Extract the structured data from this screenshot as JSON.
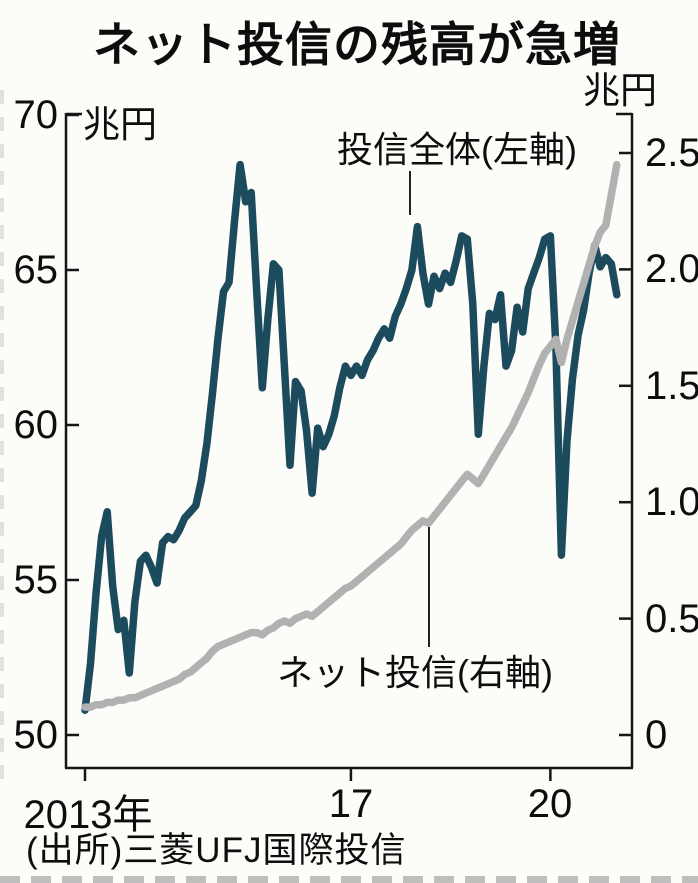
{
  "title": "ネット投信の残高が急増",
  "source": "(出所)三菱UFJ国際投信",
  "chart_data": {
    "type": "line",
    "title": "ネット投信の残高が急増",
    "x_start": "2013-01",
    "x_end": "2021-01",
    "x_frequency": "monthly",
    "grid": false,
    "left_axis": {
      "unit": "兆円",
      "min": 50,
      "max": 70,
      "ticks": {
        "t0": "70",
        "t1": "65",
        "t2": "60",
        "t3": "55",
        "t4": "50"
      },
      "tick_values": [
        70,
        65,
        60,
        55,
        50
      ]
    },
    "right_axis": {
      "unit": "兆円",
      "min": 0,
      "max": 2.5,
      "ticks": {
        "t0": "2.5",
        "t1": "2.0",
        "t2": "1.5",
        "t3": "1.0",
        "t4": "0.5",
        "t5": "0"
      },
      "tick_values": [
        2.5,
        2.0,
        1.5,
        1.0,
        0.5,
        0
      ]
    },
    "x_axis": {
      "ticks": {
        "t0": "2013年",
        "t1": "17",
        "t2": "20"
      },
      "tick_month_index": [
        0,
        48,
        84
      ]
    },
    "series": [
      {
        "name": "投信全体(左軸)",
        "axis": "left",
        "color": "#1c4b5e",
        "values": [
          50.8,
          52.3,
          54.6,
          56.4,
          57.2,
          54.8,
          53.4,
          53.7,
          52.0,
          54.3,
          55.6,
          55.8,
          55.4,
          54.9,
          56.2,
          56.4,
          56.3,
          56.6,
          57.0,
          57.2,
          57.4,
          58.2,
          59.4,
          61.0,
          62.8,
          64.3,
          64.6,
          66.6,
          68.4,
          67.2,
          67.5,
          64.3,
          61.2,
          63.4,
          65.2,
          65.0,
          61.9,
          58.7,
          61.4,
          61.1,
          59.8,
          57.8,
          59.9,
          59.3,
          59.7,
          60.3,
          61.2,
          61.9,
          61.6,
          61.9,
          61.6,
          62.1,
          62.4,
          62.8,
          63.1,
          62.8,
          63.5,
          63.9,
          64.4,
          65.0,
          66.4,
          64.9,
          63.9,
          64.8,
          64.4,
          64.9,
          64.6,
          65.3,
          66.1,
          66.0,
          63.9,
          59.7,
          61.9,
          63.6,
          63.4,
          64.2,
          61.9,
          62.4,
          63.8,
          63.0,
          64.4,
          64.9,
          65.4,
          66.0,
          66.1,
          62.5,
          55.8,
          59.5,
          61.5,
          62.9,
          63.7,
          64.9,
          65.8,
          65.1,
          65.4,
          65.2,
          64.2
        ]
      },
      {
        "name": "ネット投信(右軸)",
        "axis": "right",
        "color": "#b1b1b1",
        "values": [
          0.12,
          0.12,
          0.13,
          0.13,
          0.14,
          0.14,
          0.15,
          0.15,
          0.16,
          0.16,
          0.17,
          0.18,
          0.19,
          0.2,
          0.21,
          0.22,
          0.23,
          0.24,
          0.26,
          0.27,
          0.29,
          0.31,
          0.33,
          0.36,
          0.38,
          0.39,
          0.4,
          0.41,
          0.42,
          0.43,
          0.44,
          0.44,
          0.43,
          0.45,
          0.46,
          0.48,
          0.49,
          0.48,
          0.5,
          0.51,
          0.52,
          0.51,
          0.53,
          0.55,
          0.57,
          0.59,
          0.61,
          0.63,
          0.64,
          0.66,
          0.68,
          0.7,
          0.72,
          0.74,
          0.76,
          0.78,
          0.8,
          0.82,
          0.85,
          0.88,
          0.9,
          0.92,
          0.91,
          0.94,
          0.97,
          1.0,
          1.03,
          1.06,
          1.09,
          1.12,
          1.1,
          1.08,
          1.12,
          1.16,
          1.2,
          1.24,
          1.28,
          1.32,
          1.37,
          1.42,
          1.47,
          1.53,
          1.59,
          1.64,
          1.67,
          1.7,
          1.6,
          1.7,
          1.78,
          1.86,
          1.94,
          2.02,
          2.1,
          2.16,
          2.19,
          2.32,
          2.45
        ]
      }
    ],
    "annotations": {
      "total_label": "投信全体(左軸)",
      "net_label": "ネット投信(右軸)"
    },
    "colors": {
      "axis": "#161616",
      "text": "#0d0d0d",
      "background": "#fcfcf9"
    }
  }
}
